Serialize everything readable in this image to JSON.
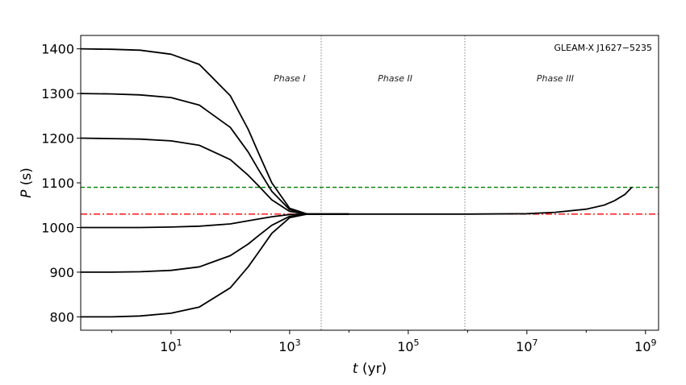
{
  "chart_data": {
    "type": "line",
    "title": "GLEAM-X J1627−5235",
    "xlabel_var": "t",
    "xlabel_unit": " (yr)",
    "ylabel_var": "P",
    "ylabel_unit": " (s)",
    "xscale": "log",
    "xlim": [
      0.3,
      1660000000.0
    ],
    "ylim": [
      770,
      1430
    ],
    "yticks": [
      800,
      900,
      1000,
      1100,
      1200,
      1300,
      1400
    ],
    "xticks": [
      {
        "base": "10",
        "exp": "1",
        "value": 10
      },
      {
        "base": "10",
        "exp": "3",
        "value": 1000
      },
      {
        "base": "10",
        "exp": "5",
        "value": 100000
      },
      {
        "base": "10",
        "exp": "7",
        "value": 10000000
      },
      {
        "base": "10",
        "exp": "9",
        "value": 1000000000
      }
    ],
    "minor_xticks": [
      1,
      100,
      10000,
      1000000,
      100000000
    ],
    "phase_boundaries": [
      3400,
      900000
    ],
    "phases": [
      {
        "label": "Phase I",
        "x": 1000
      },
      {
        "label": "Phase II",
        "x": 60000
      },
      {
        "label": "Phase III",
        "x": 30000000
      }
    ],
    "hlines": [
      {
        "name": "green-dashed-line",
        "y": 1090,
        "color": "#008000",
        "style": "dashed"
      },
      {
        "name": "red-dashdot-line",
        "y": 1030,
        "color": "#ff0000",
        "style": "dashdot"
      }
    ],
    "x": [
      0.3,
      1,
      3,
      10,
      30,
      100,
      200,
      300,
      500,
      1000,
      2000,
      3000,
      10000
    ],
    "series": [
      {
        "name": "P0=1400",
        "values": [
          1400,
          1399,
          1397,
          1388,
          1365,
          1295,
          1220,
          1166,
          1100,
          1043,
          1030,
          1030,
          1030
        ]
      },
      {
        "name": "P0=1300",
        "values": [
          1300,
          1299,
          1297,
          1291,
          1274,
          1224,
          1169,
          1129,
          1081,
          1040,
          1030,
          1030,
          1030
        ]
      },
      {
        "name": "P0=1200",
        "values": [
          1200,
          1199,
          1198,
          1194,
          1184,
          1152,
          1117,
          1093,
          1062,
          1036,
          1030,
          1030,
          1030
        ]
      },
      {
        "name": "P0=1000",
        "values": [
          1000,
          1000,
          1000,
          1001,
          1003,
          1008,
          1015,
          1019,
          1024,
          1029,
          1030,
          1030,
          1030
        ]
      },
      {
        "name": "P0=900",
        "values": [
          900,
          900,
          901,
          904,
          912,
          937,
          963,
          982,
          1005,
          1025,
          1030,
          1030,
          1030
        ]
      },
      {
        "name": "P0=800",
        "values": [
          800,
          800,
          802,
          808,
          822,
          865,
          912,
          945,
          987,
          1022,
          1030,
          1030,
          1030
        ]
      }
    ],
    "tail": {
      "name": "long-term",
      "x": [
        10000,
        100000,
        1000000,
        10000000,
        30000000,
        100000000,
        200000000,
        300000000,
        450000000,
        590000000
      ],
      "values": [
        1030,
        1030,
        1030,
        1031,
        1034,
        1041,
        1050,
        1060,
        1074,
        1090
      ]
    }
  }
}
